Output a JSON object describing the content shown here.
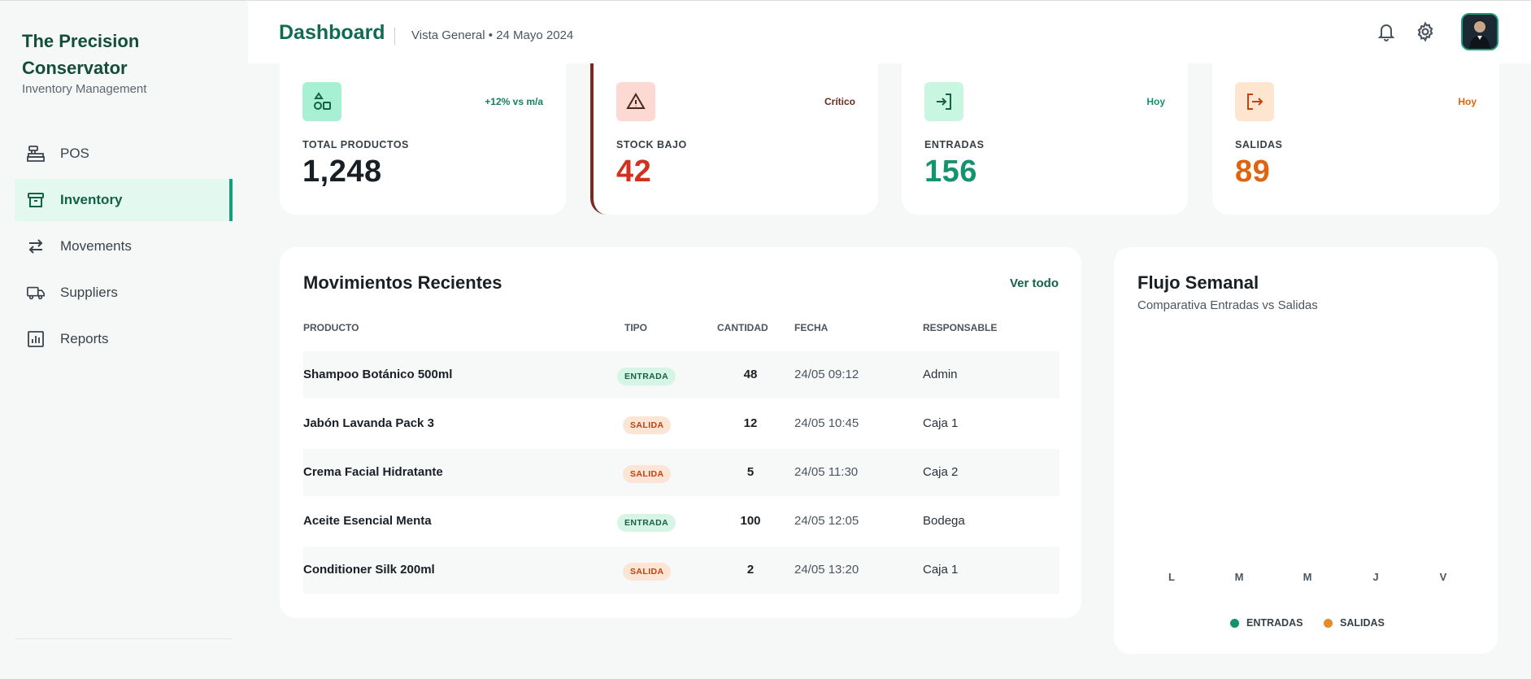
{
  "brand": {
    "title": "The Precision Conservator",
    "subtitle": "Inventory Management"
  },
  "sidebar": {
    "items": [
      {
        "label": "POS",
        "icon": "cash-register-icon",
        "active": false
      },
      {
        "label": "Inventory",
        "icon": "archive-box-icon",
        "active": true
      },
      {
        "label": "Movements",
        "icon": "swap-arrows-icon",
        "active": false
      },
      {
        "label": "Suppliers",
        "icon": "truck-icon",
        "active": false
      },
      {
        "label": "Reports",
        "icon": "bar-chart-icon",
        "active": false
      }
    ]
  },
  "header": {
    "title": "Dashboard",
    "subtitle": "Vista General • 24 Mayo 2024",
    "icons": [
      "bell-icon",
      "gear-icon",
      "avatar"
    ]
  },
  "stats": [
    {
      "label": "TOTAL PRODUCTOS",
      "value": "1,248",
      "tag": "+12% vs m/a",
      "icon": "shapes-icon",
      "accent": "#14805e",
      "icon_bg": "#a7f0d4"
    },
    {
      "label": "STOCK BAJO",
      "value": "42",
      "tag": "Crítico",
      "icon": "warning-icon",
      "accent": "#d1321f",
      "icon_bg": "#fcd9d3"
    },
    {
      "label": "ENTRADAS",
      "value": "156",
      "tag": "Hoy",
      "icon": "sign-in-icon",
      "accent": "#14946c",
      "icon_bg": "#c8f6e1"
    },
    {
      "label": "SALIDAS",
      "value": "89",
      "tag": "Hoy",
      "icon": "sign-out-icon",
      "accent": "#e0640f",
      "icon_bg": "#fde5cf"
    }
  ],
  "movements": {
    "title": "Movimientos Recientes",
    "see_all": "Ver todo",
    "columns": [
      "PRODUCTO",
      "TIPO",
      "CANTIDAD",
      "FECHA",
      "RESPONSABLE"
    ],
    "rows": [
      {
        "product": "Shampoo Botánico 500ml",
        "type": "ENTRADA",
        "qty": "48",
        "date": "24/05 09:12",
        "resp": "Admin"
      },
      {
        "product": "Jabón Lavanda Pack 3",
        "type": "SALIDA",
        "qty": "12",
        "date": "24/05 10:45",
        "resp": "Caja 1"
      },
      {
        "product": "Crema Facial Hidratante",
        "type": "SALIDA",
        "qty": "5",
        "date": "24/05 11:30",
        "resp": "Caja 2"
      },
      {
        "product": "Aceite Esencial Menta",
        "type": "ENTRADA",
        "qty": "100",
        "date": "24/05 12:05",
        "resp": "Bodega"
      },
      {
        "product": "Conditioner Silk 200ml",
        "type": "SALIDA",
        "qty": "2",
        "date": "24/05 13:20",
        "resp": "Caja 1"
      }
    ]
  },
  "flow": {
    "title": "Flujo Semanal",
    "subtitle": "Comparativa Entradas vs Salidas",
    "days": [
      "L",
      "M",
      "M",
      "J",
      "V"
    ],
    "legend": [
      {
        "label": "ENTRADAS",
        "color": "#14946c"
      },
      {
        "label": "SALIDAS",
        "color": "#e58b2c"
      }
    ]
  },
  "colors": {
    "brand": "#134e3a",
    "accent": "#16a07a",
    "critical_border": "#7a2a24"
  }
}
